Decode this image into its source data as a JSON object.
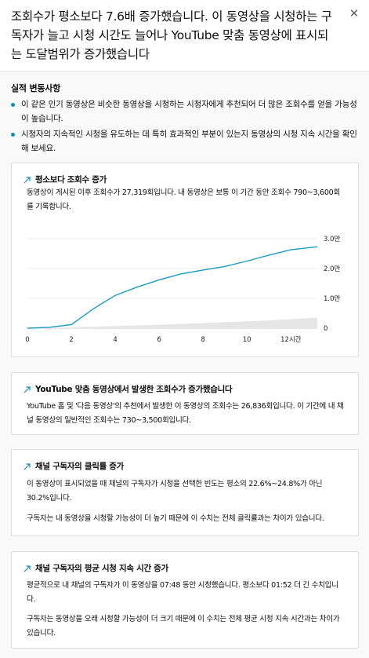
{
  "header": {
    "headline": "조회수가 평소보다 7.6배 증가했습니다. 이 동영상을 시청하는 구독자가 늘고 시청 시간도 늘어나 YouTube 맞춤 동영상에 표시되는 도달범위가 증가했습니다",
    "close_icon": "close-icon"
  },
  "changes": {
    "title": "실적 변동사항",
    "bullets": [
      "이 같은 인기 동영상은 비슷한 동영상을 시청하는 시청자에게 추천되어 더 많은 조회수를 얻을 가능성이 높습니다.",
      "시청자의 지속적인 시청을 유도하는 데 특히 효과적인 부분이 있는지 동영상의 시청 지속 시간을 확인해 보세요."
    ],
    "bullet_color": "#0f8fb0"
  },
  "cards": {
    "views": {
      "title": "평소보다 조회수 증가",
      "text": "동영상이 게시된 이후 조회수가 27,319회입니다. 내 동영상은 보통 이 기간 동안 조회수 790~3,600회를 기록합니다."
    },
    "recommended": {
      "title": "YouTube 맞춤 동영상에서 발생한 조회수가 증가했습니다",
      "text": "YouTube 홈 및 '다음 동영상'의 추천에서 발생한 이 동영상의 조회수는 26,836회입니다. 이 기간에 내 채널 동영상의 일반적인 조회수는 730~3,500회입니다."
    },
    "ctr": {
      "title": "채널 구독자의 클릭률 증가",
      "text1": "이 동영상이 표시되었을 때 채널의 구독자가 시청을 선택한 빈도는 평소의 22.6%~24.8%가 아닌 30.2%입니다.",
      "text2": "구독자는 내 동영상을 시청할 가능성이 더 높기 때문에 이 수치는 전체 클릭률과는 차이가 있습니다."
    },
    "watch_time": {
      "title": "채널 구독자의 평균 시청 지속 시간 증가",
      "text1": "평균적으로 내 채널의 구독자가 이 동영상을 07:48 동안 시청했습니다. 평소보다 01:52 더 긴 수치입니다.",
      "text2": "구독자는 동영상을 오래 시청할 가능성이 더 크기 때문에 이 수치는 전체 평균 시청 지속 시간과는 차이가 있습니다."
    },
    "icon": "trending-up-arrow-icon",
    "accent_color": "#1a8ab8"
  },
  "chart_data": {
    "type": "line",
    "x_tick_labels": [
      "0",
      "2",
      "4",
      "6",
      "8",
      "10",
      "12시간"
    ],
    "x_ticks": [
      0,
      2,
      4,
      6,
      8,
      10,
      12
    ],
    "xlim": [
      0,
      13.2
    ],
    "y_tick_labels": [
      "0",
      "1.0만",
      "2.0만",
      "3.0만"
    ],
    "y_ticks": [
      0,
      10000,
      20000,
      30000
    ],
    "ylim": [
      0,
      30000
    ],
    "series": [
      {
        "color": "#1a9cc4",
        "x": [
          0,
          1,
          2,
          3,
          4,
          5,
          6,
          7,
          8,
          9,
          10,
          11,
          12,
          13.2
        ],
        "y": [
          0,
          300,
          1200,
          6500,
          11000,
          13800,
          16200,
          18200,
          19500,
          20700,
          22500,
          24500,
          26300,
          27300
        ]
      }
    ],
    "typical_range": {
      "color": "#e6e6e6",
      "x": [
        0,
        2,
        4,
        6,
        8,
        10,
        12,
        13.2
      ],
      "y_low": [
        0,
        0,
        0,
        0,
        0,
        0,
        0,
        0
      ],
      "y_high": [
        0,
        300,
        700,
        1200,
        1700,
        2300,
        3000,
        3600
      ]
    },
    "grid": true
  }
}
